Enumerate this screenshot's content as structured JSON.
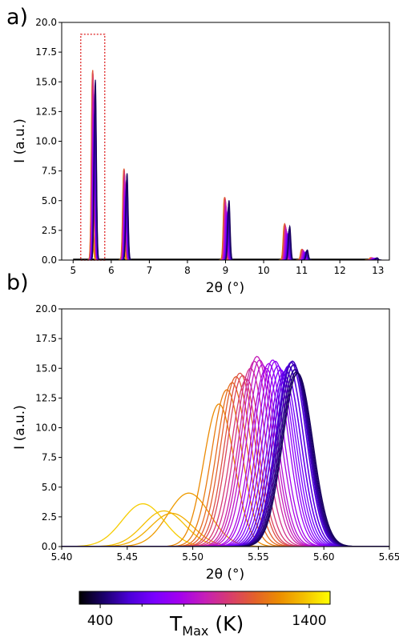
{
  "panel_labels": [
    "a)",
    "b)"
  ],
  "colorbar": {
    "label_main": "T",
    "label_sub": "Max",
    "label_unit": "(K)",
    "ticks": [
      {
        "value": 400,
        "label": "400"
      },
      {
        "value": 1400,
        "label": "1400"
      }
    ],
    "minor_ticks": [
      600,
      800,
      1000,
      1200
    ],
    "range": [
      300,
      1500
    ],
    "colormap": "gnuplot",
    "stops": [
      "#000000",
      "#1c006e",
      "#4b00d9",
      "#7a00ff",
      "#a300ee",
      "#c51eb8",
      "#d83c6e",
      "#e3612a",
      "#ec8e00",
      "#f4c200",
      "#ffff00"
    ]
  },
  "chart_data": [
    {
      "panel": "a)",
      "type": "line",
      "xlabel": "2θ (°)",
      "ylabel": "I (a.u.)",
      "xlim": [
        4.7,
        13.3
      ],
      "ylim": [
        0,
        20
      ],
      "xticks": [
        {
          "value": 5,
          "label": "5"
        },
        {
          "value": 6,
          "label": "6"
        },
        {
          "value": 7,
          "label": "7"
        },
        {
          "value": 8,
          "label": "8"
        },
        {
          "value": 9,
          "label": "9"
        },
        {
          "value": 10,
          "label": "10"
        },
        {
          "value": 11,
          "label": "11"
        },
        {
          "value": 12,
          "label": "12"
        },
        {
          "value": 13,
          "label": "13"
        }
      ],
      "yticks": [
        {
          "value": 0,
          "label": "0.0"
        },
        {
          "value": 2.5,
          "label": "2.5"
        },
        {
          "value": 5,
          "label": "5.0"
        },
        {
          "value": 7.5,
          "label": "7.5"
        },
        {
          "value": 10,
          "label": "10.0"
        },
        {
          "value": 12.5,
          "label": "12.5"
        },
        {
          "value": 15,
          "label": "15.0"
        },
        {
          "value": 17.5,
          "label": "17.5"
        },
        {
          "value": 20,
          "label": "20.0"
        }
      ],
      "data_x_range": [
        5.0,
        13.0
      ],
      "peaks": [
        {
          "position": 5.57,
          "max_intensity": 16.0
        },
        {
          "position": 6.4,
          "max_intensity": 7.7
        },
        {
          "position": 9.07,
          "max_intensity": 5.3
        },
        {
          "position": 10.66,
          "max_intensity": 3.0
        },
        {
          "position": 11.12,
          "max_intensity": 0.9
        },
        {
          "position": 12.95,
          "max_intensity": 0.2
        }
      ],
      "highlight_box": {
        "x": [
          5.2,
          5.83
        ],
        "y": [
          0,
          19
        ],
        "color": "#e03030",
        "style": "dotted"
      }
    },
    {
      "panel": "b)",
      "type": "line",
      "xlabel": "2θ (°)",
      "ylabel": "I (a.u.)",
      "xlim": [
        5.4,
        5.65
      ],
      "ylim": [
        0,
        20
      ],
      "xticks": [
        {
          "value": 5.4,
          "label": "5.40"
        },
        {
          "value": 5.45,
          "label": "5.45"
        },
        {
          "value": 5.5,
          "label": "5.50"
        },
        {
          "value": 5.55,
          "label": "5.55"
        },
        {
          "value": 5.6,
          "label": "5.60"
        },
        {
          "value": 5.65,
          "label": "5.65"
        }
      ],
      "yticks": [
        {
          "value": 0,
          "label": "0.0"
        },
        {
          "value": 2.5,
          "label": "2.5"
        },
        {
          "value": 5,
          "label": "5.0"
        },
        {
          "value": 7.5,
          "label": "7.5"
        },
        {
          "value": 10,
          "label": "10.0"
        },
        {
          "value": 12.5,
          "label": "12.5"
        },
        {
          "value": 15,
          "label": "15.0"
        },
        {
          "value": 17.5,
          "label": "17.5"
        },
        {
          "value": 20,
          "label": "20.0"
        }
      ],
      "series": [
        {
          "T": 1400,
          "peak_x": 5.462,
          "peak_y": 3.6
        },
        {
          "T": 1370,
          "peak_x": 5.478,
          "peak_y": 3.0
        },
        {
          "T": 1330,
          "peak_x": 5.484,
          "peak_y": 2.8
        },
        {
          "T": 1290,
          "peak_x": 5.497,
          "peak_y": 4.5
        },
        {
          "T": 1250,
          "peak_x": 5.52,
          "peak_y": 12.0
        },
        {
          "T": 1210,
          "peak_x": 5.526,
          "peak_y": 13.2
        },
        {
          "T": 1170,
          "peak_x": 5.53,
          "peak_y": 13.8
        },
        {
          "T": 1130,
          "peak_x": 5.533,
          "peak_y": 14.3
        },
        {
          "T": 1090,
          "peak_x": 5.536,
          "peak_y": 14.6
        },
        {
          "T": 1050,
          "peak_x": 5.538,
          "peak_y": 14.4
        },
        {
          "T": 1010,
          "peak_x": 5.541,
          "peak_y": 14.1
        },
        {
          "T": 970,
          "peak_x": 5.544,
          "peak_y": 15.0
        },
        {
          "T": 930,
          "peak_x": 5.547,
          "peak_y": 15.6
        },
        {
          "T": 900,
          "peak_x": 5.549,
          "peak_y": 16.0
        },
        {
          "T": 870,
          "peak_x": 5.551,
          "peak_y": 15.7
        },
        {
          "T": 840,
          "peak_x": 5.553,
          "peak_y": 15.3
        },
        {
          "T": 810,
          "peak_x": 5.556,
          "peak_y": 15.0
        },
        {
          "T": 780,
          "peak_x": 5.558,
          "peak_y": 15.4
        },
        {
          "T": 750,
          "peak_x": 5.561,
          "peak_y": 15.7
        },
        {
          "T": 720,
          "peak_x": 5.563,
          "peak_y": 15.6
        },
        {
          "T": 690,
          "peak_x": 5.565,
          "peak_y": 15.2
        },
        {
          "T": 660,
          "peak_x": 5.567,
          "peak_y": 14.9
        },
        {
          "T": 630,
          "peak_x": 5.569,
          "peak_y": 14.6
        },
        {
          "T": 600,
          "peak_x": 5.571,
          "peak_y": 14.8
        },
        {
          "T": 570,
          "peak_x": 5.573,
          "peak_y": 15.2
        },
        {
          "T": 540,
          "peak_x": 5.575,
          "peak_y": 15.5
        },
        {
          "T": 510,
          "peak_x": 5.576,
          "peak_y": 15.6
        },
        {
          "T": 480,
          "peak_x": 5.577,
          "peak_y": 15.3
        },
        {
          "T": 450,
          "peak_x": 5.578,
          "peak_y": 14.9
        },
        {
          "T": 420,
          "peak_x": 5.579,
          "peak_y": 14.7
        },
        {
          "T": 400,
          "peak_x": 5.58,
          "peak_y": 14.6
        }
      ]
    }
  ]
}
